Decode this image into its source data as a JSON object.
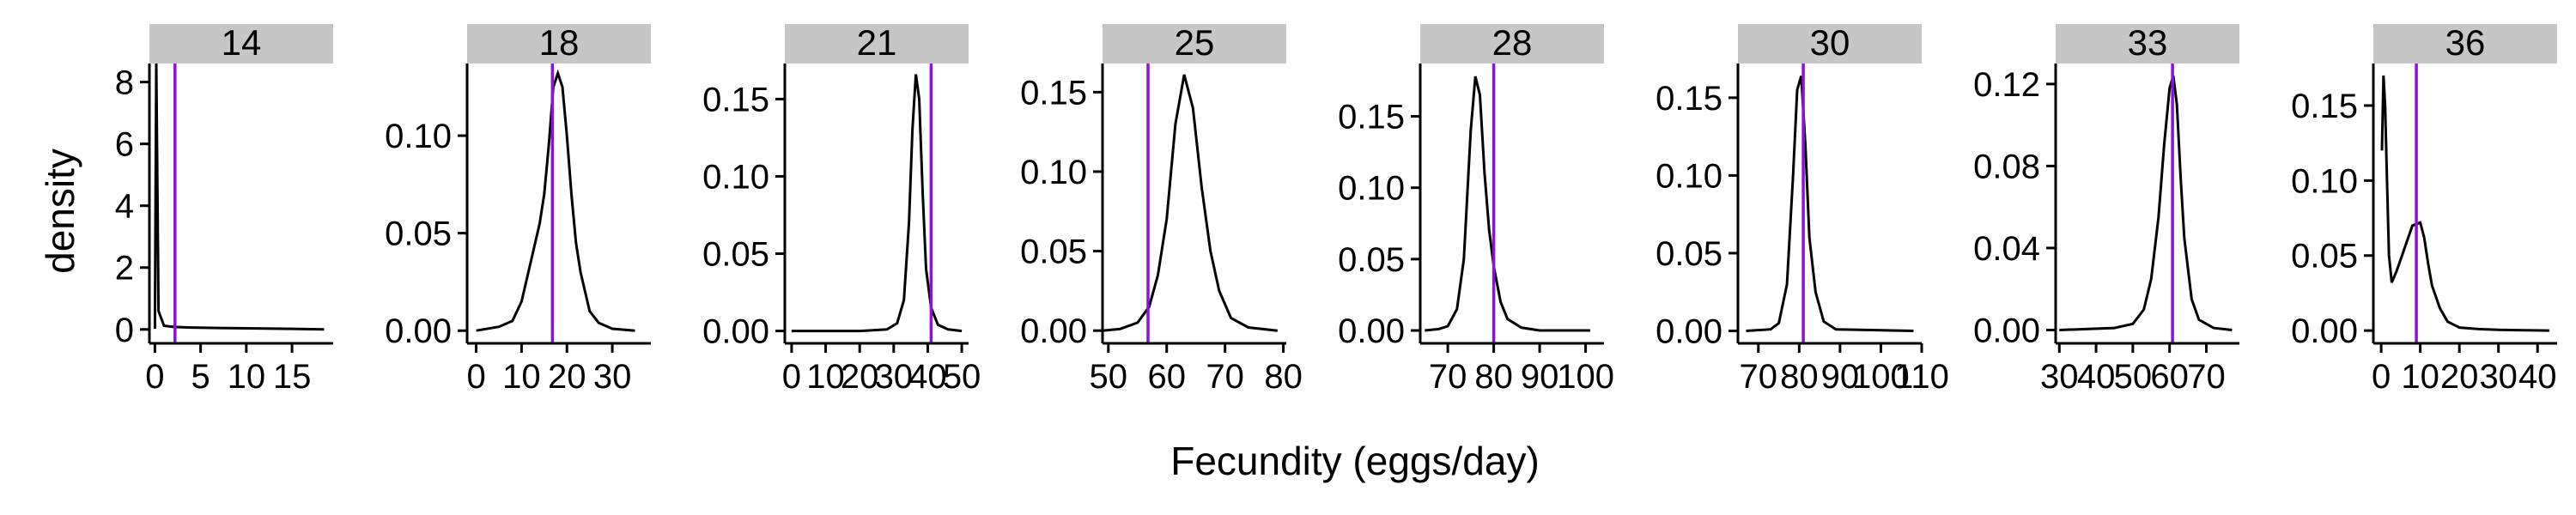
{
  "chart_data": {
    "type": "line",
    "xlabel": "Fecundity (eggs/day)",
    "ylabel": "density",
    "reference_line_color": "#8b12d8",
    "density_line_color": "#000000",
    "strip_color": "#c6c6c6",
    "panels": [
      {
        "label": "14",
        "xlim": [
          -0.6,
          19.5
        ],
        "ylim": [
          -0.45,
          8.6
        ],
        "xticks": [
          0,
          5,
          10,
          15
        ],
        "xtick_labels": [
          "0",
          "5",
          "10",
          "15"
        ],
        "yticks": [
          0,
          2,
          4,
          6,
          8
        ],
        "ytick_labels": [
          "0",
          "2",
          "4",
          "6",
          "8"
        ],
        "ref": 2.2,
        "curve": [
          [
            0,
            0.02
          ],
          [
            0.15,
            8.6
          ],
          [
            0.4,
            0.6
          ],
          [
            1,
            0.12
          ],
          [
            2,
            0.08
          ],
          [
            4,
            0.06
          ],
          [
            8,
            0.04
          ],
          [
            12,
            0.03
          ],
          [
            15,
            0.02
          ],
          [
            18.5,
            0.0
          ]
        ]
      },
      {
        "label": "18",
        "xlim": [
          -2,
          38.5
        ],
        "ylim": [
          -0.0065,
          0.137
        ],
        "xticks": [
          0,
          10,
          20,
          30
        ],
        "xtick_labels": [
          "0",
          "10",
          "20",
          "30"
        ],
        "yticks": [
          0,
          0.05,
          0.1
        ],
        "ytick_labels": [
          "0.00",
          "0.05",
          "0.10"
        ],
        "ref": 16.8,
        "curve": [
          [
            0,
            0
          ],
          [
            5,
            0.002
          ],
          [
            8,
            0.005
          ],
          [
            10,
            0.015
          ],
          [
            12,
            0.035
          ],
          [
            14,
            0.055
          ],
          [
            15,
            0.07
          ],
          [
            16,
            0.095
          ],
          [
            17,
            0.125
          ],
          [
            18,
            0.132
          ],
          [
            19,
            0.125
          ],
          [
            20,
            0.1
          ],
          [
            21,
            0.07
          ],
          [
            22,
            0.045
          ],
          [
            23,
            0.03
          ],
          [
            25,
            0.01
          ],
          [
            27,
            0.004
          ],
          [
            30,
            0.001
          ],
          [
            35,
            0
          ]
        ]
      },
      {
        "label": "21",
        "xlim": [
          -2,
          52
        ],
        "ylim": [
          -0.008,
          0.173
        ],
        "xticks": [
          0,
          10,
          20,
          30,
          40,
          50
        ],
        "xtick_labels": [
          "0",
          "10",
          "20",
          "30",
          "40",
          "50"
        ],
        "yticks": [
          0,
          0.05,
          0.1,
          0.15
        ],
        "ytick_labels": [
          "0.00",
          "0.05",
          "0.10",
          "0.15"
        ],
        "ref": 41,
        "curve": [
          [
            0,
            0
          ],
          [
            20,
            0
          ],
          [
            28,
            0.001
          ],
          [
            31,
            0.005
          ],
          [
            33,
            0.02
          ],
          [
            34.5,
            0.07
          ],
          [
            35.5,
            0.13
          ],
          [
            36.5,
            0.166
          ],
          [
            37.5,
            0.15
          ],
          [
            38.5,
            0.09
          ],
          [
            39.5,
            0.04
          ],
          [
            41,
            0.015
          ],
          [
            43,
            0.004
          ],
          [
            46,
            0.001
          ],
          [
            50,
            0
          ]
        ]
      },
      {
        "label": "25",
        "xlim": [
          49,
          80.5
        ],
        "ylim": [
          -0.008,
          0.168
        ],
        "xticks": [
          50,
          60,
          70,
          80
        ],
        "xtick_labels": [
          "50",
          "60",
          "70",
          "80"
        ],
        "yticks": [
          0,
          0.05,
          0.1,
          0.15
        ],
        "ytick_labels": [
          "0.00",
          "0.05",
          "0.10",
          "0.15"
        ],
        "ref": 56.8,
        "curve": [
          [
            49,
            0
          ],
          [
            52,
            0.001
          ],
          [
            55,
            0.005
          ],
          [
            57,
            0.015
          ],
          [
            58.5,
            0.035
          ],
          [
            60,
            0.07
          ],
          [
            61.5,
            0.13
          ],
          [
            63,
            0.161
          ],
          [
            64.5,
            0.14
          ],
          [
            66,
            0.09
          ],
          [
            67.5,
            0.05
          ],
          [
            69,
            0.025
          ],
          [
            71,
            0.008
          ],
          [
            74,
            0.002
          ],
          [
            79,
            0
          ]
        ]
      },
      {
        "label": "28",
        "xlim": [
          64,
          104
        ],
        "ylim": [
          -0.009,
          0.187
        ],
        "xticks": [
          70,
          80,
          90,
          100
        ],
        "xtick_labels": [
          "70",
          "80",
          "90",
          "100"
        ],
        "yticks": [
          0,
          0.05,
          0.1,
          0.15
        ],
        "ytick_labels": [
          "0.00",
          "0.05",
          "0.10",
          "0.15"
        ],
        "ref": 80,
        "curve": [
          [
            65,
            0
          ],
          [
            68,
            0.001
          ],
          [
            70,
            0.003
          ],
          [
            72,
            0.015
          ],
          [
            73.5,
            0.05
          ],
          [
            75,
            0.14
          ],
          [
            76,
            0.178
          ],
          [
            77,
            0.165
          ],
          [
            78,
            0.11
          ],
          [
            79,
            0.07
          ],
          [
            80,
            0.045
          ],
          [
            81.5,
            0.02
          ],
          [
            83,
            0.008
          ],
          [
            86,
            0.002
          ],
          [
            90,
            0
          ],
          [
            101,
            0
          ]
        ]
      },
      {
        "label": "30",
        "xlim": [
          65,
          110
        ],
        "ylim": [
          -0.008,
          0.172
        ],
        "xticks": [
          70,
          80,
          90,
          100,
          110
        ],
        "xtick_labels": [
          "70",
          "80",
          "90",
          "100",
          "110"
        ],
        "yticks": [
          0,
          0.05,
          0.1,
          0.15
        ],
        "ytick_labels": [
          "0.00",
          "0.05",
          "0.10",
          "0.15"
        ],
        "ref": 81,
        "curve": [
          [
            67,
            0
          ],
          [
            73,
            0.001
          ],
          [
            75,
            0.005
          ],
          [
            77,
            0.03
          ],
          [
            78.5,
            0.1
          ],
          [
            79.5,
            0.155
          ],
          [
            80.5,
            0.164
          ],
          [
            81.5,
            0.12
          ],
          [
            82.5,
            0.06
          ],
          [
            84,
            0.025
          ],
          [
            86,
            0.006
          ],
          [
            89,
            0.001
          ],
          [
            108,
            0
          ]
        ]
      },
      {
        "label": "33",
        "xlim": [
          29,
          79
        ],
        "ylim": [
          -0.0065,
          0.13
        ],
        "xticks": [
          30,
          40,
          50,
          60,
          70
        ],
        "xtick_labels": [
          "30",
          "40",
          "50",
          "60",
          "70"
        ],
        "yticks": [
          0,
          0.04,
          0.08,
          0.12
        ],
        "ytick_labels": [
          "0.00",
          "0.04",
          "0.08",
          "0.12"
        ],
        "ref": 60.8,
        "curve": [
          [
            30,
            0
          ],
          [
            45,
            0.001
          ],
          [
            50,
            0.003
          ],
          [
            53,
            0.01
          ],
          [
            55,
            0.025
          ],
          [
            57,
            0.055
          ],
          [
            58.5,
            0.09
          ],
          [
            60,
            0.118
          ],
          [
            61,
            0.124
          ],
          [
            62,
            0.11
          ],
          [
            63,
            0.075
          ],
          [
            64,
            0.045
          ],
          [
            66,
            0.015
          ],
          [
            68,
            0.005
          ],
          [
            72,
            0.001
          ],
          [
            77,
            0
          ]
        ]
      },
      {
        "label": "36",
        "xlim": [
          -2,
          45
        ],
        "ylim": [
          -0.0085,
          0.178
        ],
        "xticks": [
          0,
          10,
          20,
          30,
          40
        ],
        "xtick_labels": [
          "0",
          "10",
          "20",
          "30",
          "40"
        ],
        "yticks": [
          0,
          0.05,
          0.1,
          0.15
        ],
        "ytick_labels": [
          "0.00",
          "0.05",
          "0.10",
          "0.15"
        ],
        "ref": 9,
        "curve": [
          [
            0.2,
            0.12
          ],
          [
            0.6,
            0.17
          ],
          [
            1,
            0.15
          ],
          [
            1.5,
            0.1
          ],
          [
            2,
            0.05
          ],
          [
            2.7,
            0.032
          ],
          [
            4,
            0.04
          ],
          [
            6,
            0.055
          ],
          [
            8,
            0.07
          ],
          [
            10,
            0.072
          ],
          [
            11,
            0.062
          ],
          [
            12,
            0.045
          ],
          [
            13,
            0.03
          ],
          [
            15,
            0.015
          ],
          [
            17,
            0.006
          ],
          [
            20,
            0.002
          ],
          [
            25,
            0.001
          ],
          [
            30,
            0.0005
          ],
          [
            43,
            0
          ]
        ]
      }
    ]
  }
}
